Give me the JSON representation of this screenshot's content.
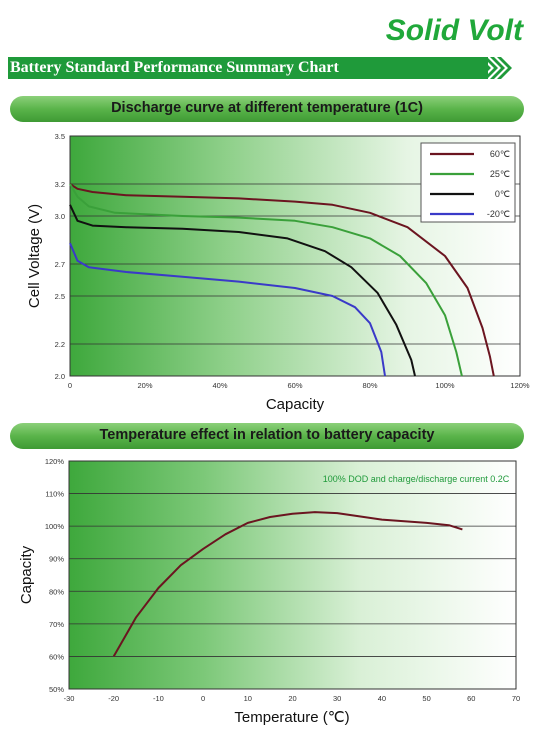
{
  "brand": "Solid Volt",
  "summary_title": "Battery Standard Performance Summary Chart",
  "colors": {
    "brand": "#20a83a",
    "header_green": "#1f9a3a"
  },
  "chart_data": [
    {
      "type": "line",
      "title": "Discharge curve at different temperature (1C)",
      "xlabel": "Capacity",
      "ylabel": "Cell Voltage (V)",
      "xlim": [
        0,
        120
      ],
      "ylim": [
        2.0,
        3.5
      ],
      "x_ticks": [
        "0",
        "20%",
        "40%",
        "60%",
        "80%",
        "100%",
        "120%"
      ],
      "y_ticks": [
        "2.0",
        "2.2",
        "2.5",
        "2.7",
        "3.0",
        "3.2",
        "3.5"
      ],
      "grid": true,
      "legend": "top-right",
      "series": [
        {
          "name": "60℃",
          "color": "#6b1520",
          "points": [
            [
              0,
              3.2
            ],
            [
              2,
              3.17
            ],
            [
              6,
              3.15
            ],
            [
              15,
              3.13
            ],
            [
              30,
              3.12
            ],
            [
              45,
              3.11
            ],
            [
              60,
              3.09
            ],
            [
              70,
              3.07
            ],
            [
              80,
              3.02
            ],
            [
              90,
              2.93
            ],
            [
              100,
              2.75
            ],
            [
              106,
              2.55
            ],
            [
              110,
              2.3
            ],
            [
              112,
              2.12
            ],
            [
              113,
              2.0
            ]
          ]
        },
        {
          "name": "25℃",
          "color": "#3aa03a",
          "points": [
            [
              0,
              3.2
            ],
            [
              2,
              3.12
            ],
            [
              5,
              3.06
            ],
            [
              12,
              3.02
            ],
            [
              30,
              3.0
            ],
            [
              45,
              2.99
            ],
            [
              60,
              2.97
            ],
            [
              70,
              2.93
            ],
            [
              80,
              2.86
            ],
            [
              88,
              2.75
            ],
            [
              95,
              2.58
            ],
            [
              100,
              2.38
            ],
            [
              103,
              2.15
            ],
            [
              104.5,
              2.0
            ]
          ]
        },
        {
          "name": "0℃",
          "color": "#111111",
          "points": [
            [
              0,
              3.07
            ],
            [
              2,
              2.97
            ],
            [
              6,
              2.94
            ],
            [
              15,
              2.93
            ],
            [
              30,
              2.92
            ],
            [
              45,
              2.9
            ],
            [
              58,
              2.86
            ],
            [
              68,
              2.78
            ],
            [
              75,
              2.68
            ],
            [
              82,
              2.52
            ],
            [
              87,
              2.32
            ],
            [
              91,
              2.1
            ],
            [
              92,
              2.0
            ]
          ]
        },
        {
          "name": "-20℃",
          "color": "#3a3ac8",
          "points": [
            [
              0,
              2.83
            ],
            [
              2,
              2.72
            ],
            [
              5,
              2.68
            ],
            [
              15,
              2.65
            ],
            [
              30,
              2.62
            ],
            [
              45,
              2.59
            ],
            [
              60,
              2.55
            ],
            [
              70,
              2.5
            ],
            [
              76,
              2.43
            ],
            [
              80,
              2.33
            ],
            [
              83,
              2.15
            ],
            [
              84,
              2.0
            ]
          ]
        }
      ]
    },
    {
      "type": "line",
      "title": "Temperature effect in relation to battery capacity",
      "xlabel": "Temperature (℃)",
      "ylabel": "Capacity",
      "xlim": [
        -30,
        70
      ],
      "ylim": [
        50,
        120
      ],
      "x_ticks": [
        "-30",
        "-20",
        "-10",
        "0",
        "10",
        "20",
        "30",
        "40",
        "50",
        "60",
        "70"
      ],
      "y_ticks": [
        "50%",
        "60%",
        "70%",
        "80%",
        "90%",
        "100%",
        "110%",
        "120%"
      ],
      "grid": true,
      "annotation": "100% DOD and charge/discharge current 0.2C",
      "series": [
        {
          "color": "#6b1520",
          "points": [
            [
              -20,
              60
            ],
            [
              -15,
              72
            ],
            [
              -10,
              81
            ],
            [
              -5,
              88
            ],
            [
              0,
              93
            ],
            [
              5,
              97.5
            ],
            [
              10,
              101
            ],
            [
              15,
              102.8
            ],
            [
              20,
              103.8
            ],
            [
              25,
              104.3
            ],
            [
              30,
              104
            ],
            [
              35,
              103
            ],
            [
              40,
              102
            ],
            [
              45,
              101.5
            ],
            [
              50,
              101
            ],
            [
              55,
              100.3
            ],
            [
              58,
              99
            ]
          ]
        }
      ]
    }
  ]
}
